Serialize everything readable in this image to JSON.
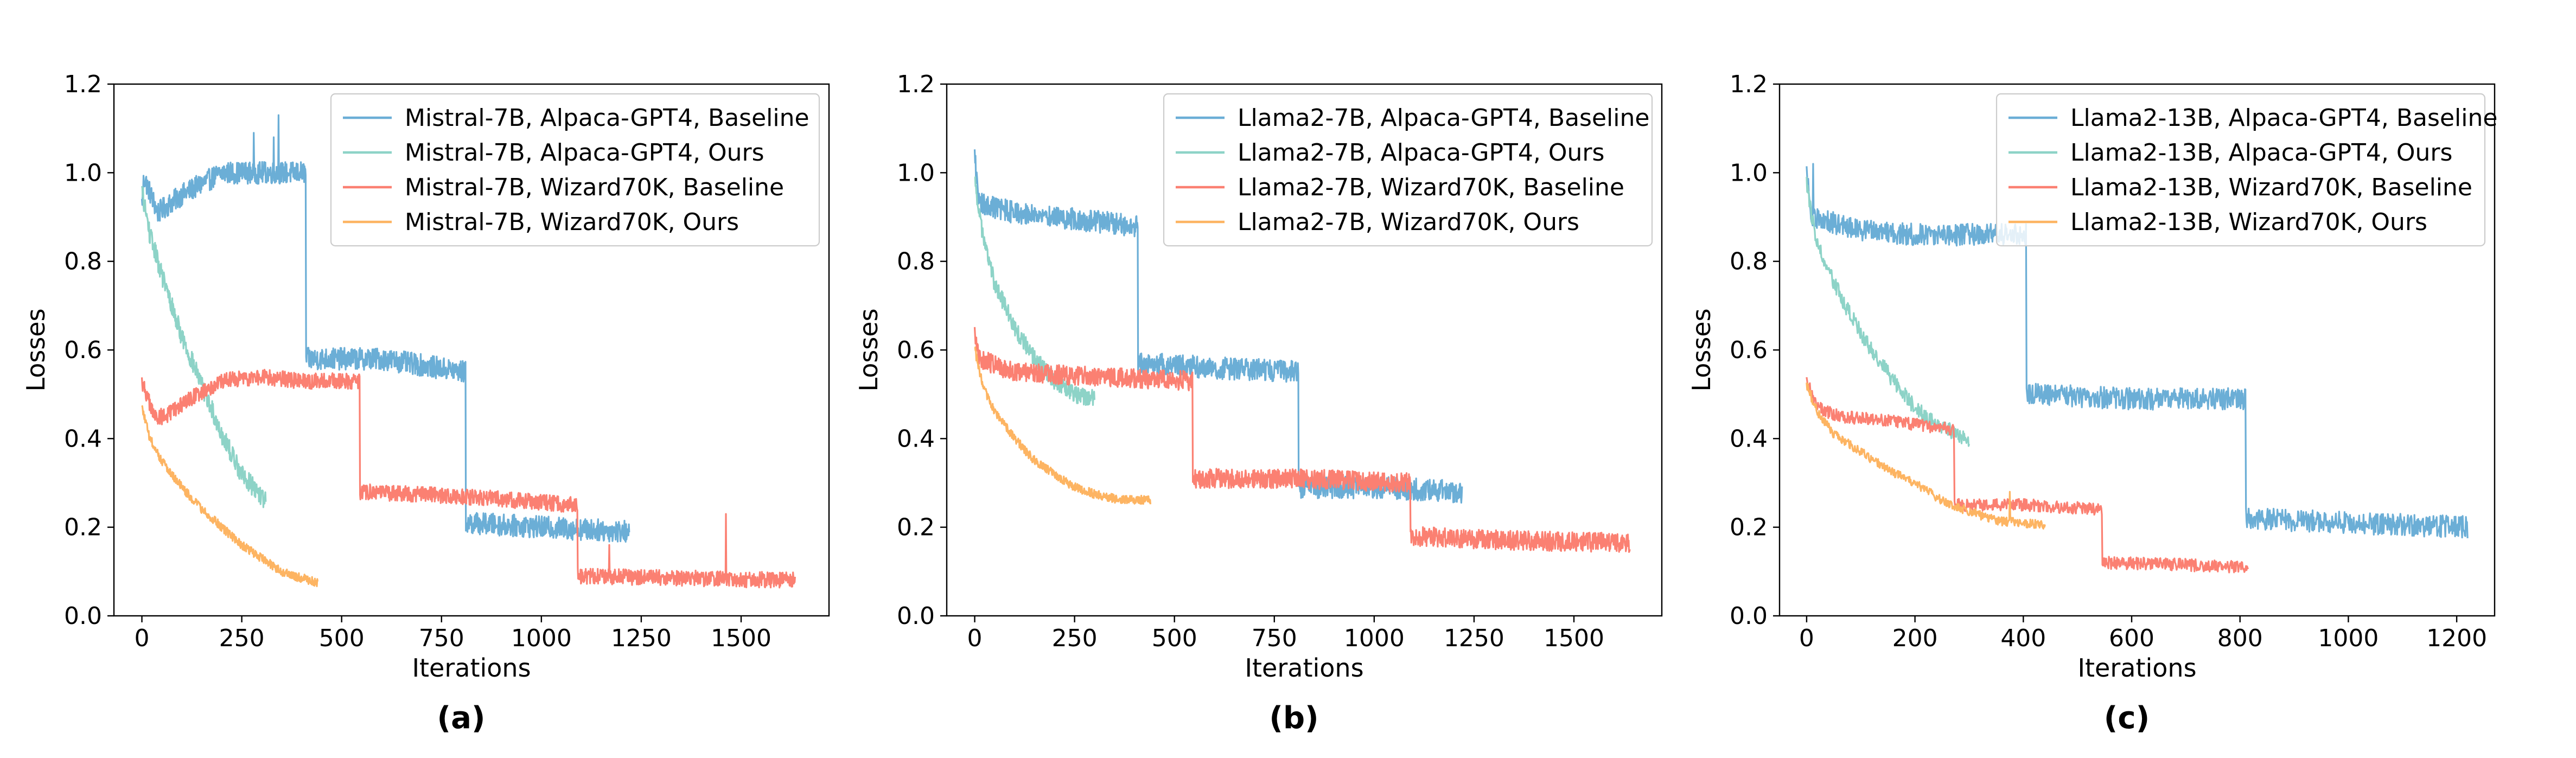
{
  "colors": {
    "series_blue": "#6BAED6",
    "series_teal": "#8DD3C7",
    "series_red": "#FB8072",
    "series_orange": "#FDB462"
  },
  "chart_data": [
    {
      "type": "line",
      "panel_label": "(a)",
      "xlabel": "Iterations",
      "ylabel": "Losses",
      "xlim": [
        -70,
        1720
      ],
      "ylim": [
        0.0,
        1.2
      ],
      "xticks": [
        0,
        250,
        500,
        750,
        1000,
        1250,
        1500
      ],
      "xtick_labels": [
        "0",
        "250",
        "500",
        "750",
        "1000",
        "1250",
        "1500"
      ],
      "yticks": [
        0.0,
        0.2,
        0.4,
        0.6,
        0.8,
        1.0,
        1.2
      ],
      "ytick_labels": [
        "0.0",
        "0.2",
        "0.4",
        "0.6",
        "0.8",
        "1.0",
        "1.2"
      ],
      "legend_position": "top-right",
      "series": [
        {
          "name": "Mistral-7B, Alpaca-GPT4, Baseline",
          "color": "#6BAED6",
          "length": 1220,
          "noise": 0.025,
          "segments": [
            {
              "x0": 0,
              "x1": 410,
              "pts": [
                [
                  0,
                  0.93
                ],
                [
                  5,
                  0.99
                ],
                [
                  40,
                  0.91
                ],
                [
                  100,
                  0.95
                ],
                [
                  200,
                  1.0
                ],
                [
                  300,
                  1.0
                ],
                [
                  410,
                  1.0
                ]
              ]
            },
            {
              "x0": 411,
              "x1": 810,
              "pts": [
                [
                  411,
                  0.58
                ],
                [
                  600,
                  0.58
                ],
                [
                  810,
                  0.55
                ]
              ]
            },
            {
              "x0": 811,
              "x1": 1220,
              "pts": [
                [
                  811,
                  0.21
                ],
                [
                  1000,
                  0.2
                ],
                [
                  1220,
                  0.19
                ]
              ]
            }
          ],
          "spikes": [
            [
              342,
              1.13
            ],
            [
              330,
              1.08
            ],
            [
              280,
              1.09
            ]
          ]
        },
        {
          "name": "Mistral-7B, Alpaca-GPT4, Ours",
          "color": "#8DD3C7",
          "length": 310,
          "noise": 0.022,
          "segments": [
            {
              "x0": 0,
              "x1": 310,
              "pts": [
                [
                  0,
                  0.96
                ],
                [
                  20,
                  0.86
                ],
                [
                  60,
                  0.74
                ],
                [
                  100,
                  0.63
                ],
                [
                  150,
                  0.52
                ],
                [
                  200,
                  0.41
                ],
                [
                  250,
                  0.32
                ],
                [
                  310,
                  0.26
                ]
              ]
            }
          ]
        },
        {
          "name": "Mistral-7B, Wizard70K, Baseline",
          "color": "#FB8072",
          "length": 1635,
          "noise": 0.018,
          "segments": [
            {
              "x0": 0,
              "x1": 545,
              "pts": [
                [
                  0,
                  0.53
                ],
                [
                  30,
                  0.45
                ],
                [
                  60,
                  0.45
                ],
                [
                  120,
                  0.49
                ],
                [
                  200,
                  0.53
                ],
                [
                  300,
                  0.54
                ],
                [
                  400,
                  0.53
                ],
                [
                  545,
                  0.53
                ]
              ]
            },
            {
              "x0": 546,
              "x1": 1090,
              "pts": [
                [
                  546,
                  0.28
                ],
                [
                  800,
                  0.27
                ],
                [
                  1090,
                  0.25
                ]
              ]
            },
            {
              "x0": 1091,
              "x1": 1635,
              "pts": [
                [
                  1091,
                  0.09
                ],
                [
                  1350,
                  0.085
                ],
                [
                  1635,
                  0.08
                ]
              ]
            }
          ],
          "spikes": [
            [
              1462,
              0.23
            ],
            [
              1170,
              0.16
            ]
          ]
        },
        {
          "name": "Mistral-7B, Wizard70K, Ours",
          "color": "#FDB462",
          "length": 440,
          "noise": 0.01,
          "segments": [
            {
              "x0": 0,
              "x1": 440,
              "pts": [
                [
                  0,
                  0.47
                ],
                [
                  20,
                  0.4
                ],
                [
                  50,
                  0.35
                ],
                [
                  100,
                  0.29
                ],
                [
                  150,
                  0.24
                ],
                [
                  200,
                  0.2
                ],
                [
                  250,
                  0.16
                ],
                [
                  300,
                  0.13
                ],
                [
                  350,
                  0.1
                ],
                [
                  400,
                  0.085
                ],
                [
                  440,
                  0.075
                ]
              ]
            }
          ]
        }
      ]
    },
    {
      "type": "line",
      "panel_label": "(b)",
      "xlabel": "Iterations",
      "ylabel": "Losses",
      "xlim": [
        -70,
        1720
      ],
      "ylim": [
        0.0,
        1.2
      ],
      "xticks": [
        0,
        250,
        500,
        750,
        1000,
        1250,
        1500
      ],
      "xtick_labels": [
        "0",
        "250",
        "500",
        "750",
        "1000",
        "1250",
        "1500"
      ],
      "yticks": [
        0.0,
        0.2,
        0.4,
        0.6,
        0.8,
        1.0,
        1.2
      ],
      "ytick_labels": [
        "0.0",
        "0.2",
        "0.4",
        "0.6",
        "0.8",
        "1.0",
        "1.2"
      ],
      "legend_position": "top-right",
      "series": [
        {
          "name": "Llama2-7B, Alpaca-GPT4, Baseline",
          "color": "#6BAED6",
          "length": 1220,
          "noise": 0.025,
          "segments": [
            {
              "x0": 0,
              "x1": 408,
              "pts": [
                [
                  0,
                  1.04
                ],
                [
                  10,
                  0.93
                ],
                [
                  100,
                  0.91
                ],
                [
                  200,
                  0.9
                ],
                [
                  300,
                  0.89
                ],
                [
                  408,
                  0.88
                ]
              ]
            },
            {
              "x0": 409,
              "x1": 810,
              "pts": [
                [
                  409,
                  0.57
                ],
                [
                  600,
                  0.56
                ],
                [
                  810,
                  0.55
                ]
              ]
            },
            {
              "x0": 811,
              "x1": 1220,
              "pts": [
                [
                  811,
                  0.29
                ],
                [
                  1000,
                  0.29
                ],
                [
                  1220,
                  0.28
                ]
              ]
            }
          ]
        },
        {
          "name": "Llama2-7B, Alpaca-GPT4, Ours",
          "color": "#8DD3C7",
          "length": 300,
          "noise": 0.02,
          "segments": [
            {
              "x0": 0,
              "x1": 300,
              "pts": [
                [
                  0,
                  0.98
                ],
                [
                  20,
                  0.86
                ],
                [
                  50,
                  0.75
                ],
                [
                  100,
                  0.65
                ],
                [
                  150,
                  0.58
                ],
                [
                  200,
                  0.53
                ],
                [
                  250,
                  0.5
                ],
                [
                  300,
                  0.49
                ]
              ]
            }
          ]
        },
        {
          "name": "Llama2-7B, Wizard70K, Baseline",
          "color": "#FB8072",
          "length": 1640,
          "noise": 0.022,
          "segments": [
            {
              "x0": 0,
              "x1": 545,
              "pts": [
                [
                  0,
                  0.64
                ],
                [
                  10,
                  0.58
                ],
                [
                  100,
                  0.55
                ],
                [
                  300,
                  0.54
                ],
                [
                  545,
                  0.53
                ]
              ]
            },
            {
              "x0": 546,
              "x1": 1090,
              "pts": [
                [
                  546,
                  0.31
                ],
                [
                  800,
                  0.31
                ],
                [
                  1090,
                  0.3
                ]
              ]
            },
            {
              "x0": 1091,
              "x1": 1640,
              "pts": [
                [
                  1091,
                  0.18
                ],
                [
                  1350,
                  0.17
                ],
                [
                  1640,
                  0.165
                ]
              ]
            }
          ]
        },
        {
          "name": "Llama2-7B, Wizard70K, Ours",
          "color": "#FDB462",
          "length": 440,
          "noise": 0.01,
          "segments": [
            {
              "x0": 0,
              "x1": 440,
              "pts": [
                [
                  0,
                  0.6
                ],
                [
                  20,
                  0.52
                ],
                [
                  50,
                  0.46
                ],
                [
                  100,
                  0.4
                ],
                [
                  150,
                  0.35
                ],
                [
                  200,
                  0.32
                ],
                [
                  250,
                  0.29
                ],
                [
                  300,
                  0.275
                ],
                [
                  350,
                  0.265
                ],
                [
                  440,
                  0.26
                ]
              ]
            }
          ]
        }
      ]
    },
    {
      "type": "line",
      "panel_label": "(c)",
      "xlabel": "Iterations",
      "ylabel": "Losses",
      "xlim": [
        -50,
        1270
      ],
      "ylim": [
        0.0,
        1.2
      ],
      "xticks": [
        0,
        200,
        400,
        600,
        800,
        1000,
        1200
      ],
      "xtick_labels": [
        "0",
        "200",
        "400",
        "600",
        "800",
        "1000",
        "1200"
      ],
      "yticks": [
        0.0,
        0.2,
        0.4,
        0.6,
        0.8,
        1.0,
        1.2
      ],
      "ytick_labels": [
        "0.0",
        "0.2",
        "0.4",
        "0.6",
        "0.8",
        "1.0",
        "1.2"
      ],
      "legend_position": "top-right",
      "series": [
        {
          "name": "Llama2-13B, Alpaca-GPT4, Baseline",
          "color": "#6BAED6",
          "length": 1220,
          "noise": 0.025,
          "segments": [
            {
              "x0": 0,
              "x1": 405,
              "pts": [
                [
                  0,
                  1.0
                ],
                [
                  10,
                  0.9
                ],
                [
                  100,
                  0.87
                ],
                [
                  200,
                  0.86
                ],
                [
                  300,
                  0.86
                ],
                [
                  405,
                  0.86
                ]
              ]
            },
            {
              "x0": 406,
              "x1": 810,
              "pts": [
                [
                  406,
                  0.5
                ],
                [
                  600,
                  0.49
                ],
                [
                  810,
                  0.49
                ]
              ]
            },
            {
              "x0": 811,
              "x1": 1220,
              "pts": [
                [
                  811,
                  0.22
                ],
                [
                  1000,
                  0.21
                ],
                [
                  1220,
                  0.2
                ]
              ]
            }
          ],
          "spikes": [
            [
              12,
              1.02
            ]
          ]
        },
        {
          "name": "Llama2-13B, Alpaca-GPT4, Ours",
          "color": "#8DD3C7",
          "length": 300,
          "noise": 0.018,
          "segments": [
            {
              "x0": 0,
              "x1": 300,
              "pts": [
                [
                  0,
                  0.98
                ],
                [
                  15,
                  0.86
                ],
                [
                  40,
                  0.78
                ],
                [
                  80,
                  0.68
                ],
                [
                  120,
                  0.6
                ],
                [
                  160,
                  0.53
                ],
                [
                  200,
                  0.47
                ],
                [
                  240,
                  0.43
                ],
                [
                  300,
                  0.4
                ]
              ]
            }
          ]
        },
        {
          "name": "Llama2-13B, Wizard70K, Baseline",
          "color": "#FB8072",
          "length": 815,
          "noise": 0.014,
          "segments": [
            {
              "x0": 0,
              "x1": 272,
              "pts": [
                [
                  0,
                  0.53
                ],
                [
                  20,
                  0.47
                ],
                [
                  60,
                  0.45
                ],
                [
                  150,
                  0.44
                ],
                [
                  272,
                  0.42
                ]
              ]
            },
            {
              "x0": 273,
              "x1": 545,
              "pts": [
                [
                  273,
                  0.25
                ],
                [
                  400,
                  0.25
                ],
                [
                  545,
                  0.24
                ]
              ]
            },
            {
              "x0": 546,
              "x1": 815,
              "pts": [
                [
                  546,
                  0.12
                ],
                [
                  700,
                  0.115
                ],
                [
                  815,
                  0.11
                ]
              ]
            }
          ]
        },
        {
          "name": "Llama2-13B, Wizard70K, Ours",
          "color": "#FDB462",
          "length": 440,
          "noise": 0.01,
          "segments": [
            {
              "x0": 0,
              "x1": 440,
              "pts": [
                [
                  0,
                  0.52
                ],
                [
                  20,
                  0.46
                ],
                [
                  50,
                  0.41
                ],
                [
                  100,
                  0.37
                ],
                [
                  150,
                  0.33
                ],
                [
                  200,
                  0.3
                ],
                [
                  250,
                  0.26
                ],
                [
                  300,
                  0.235
                ],
                [
                  350,
                  0.215
                ],
                [
                  440,
                  0.205
                ]
              ]
            }
          ],
          "spikes": [
            [
              375,
              0.28
            ]
          ]
        }
      ]
    }
  ]
}
